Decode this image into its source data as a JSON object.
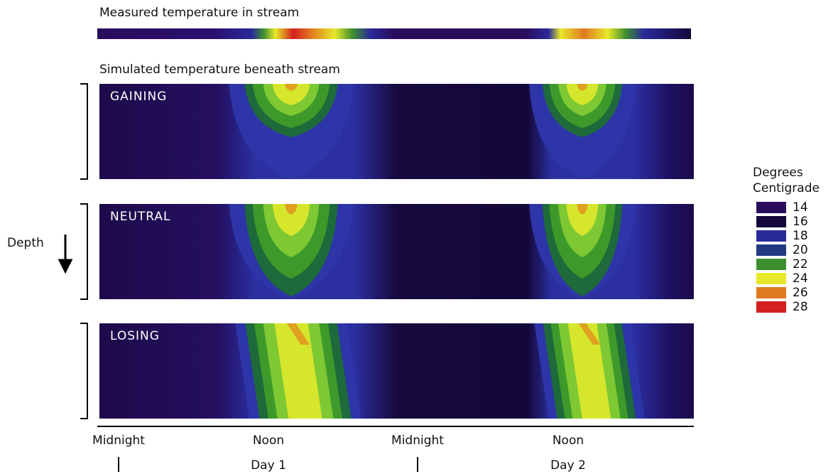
{
  "title_measured": "Measured temperature in stream",
  "title_simulated": "Simulated temperature beneath stream",
  "panels": [
    {
      "label": "GAINING"
    },
    {
      "label": "NEUTRAL"
    },
    {
      "label": "LOSING"
    }
  ],
  "depth_label": "Depth",
  "x_axis": {
    "labels": [
      {
        "time": "Midnight"
      },
      {
        "time": "Noon",
        "day": "Day 1"
      },
      {
        "time": "Midnight"
      },
      {
        "time": "Noon",
        "day": "Day 2"
      }
    ]
  },
  "legend": {
    "title": [
      "Degrees",
      "Centigrade"
    ],
    "items": [
      {
        "label": "14",
        "color": "#2a0c5c"
      },
      {
        "label": "16",
        "color": "#14083a"
      },
      {
        "label": "18",
        "color": "#2a2a9a"
      },
      {
        "label": "20",
        "color": "#1f3a80"
      },
      {
        "label": "22",
        "color": "#3d8f2e"
      },
      {
        "label": "24",
        "color": "#e8e82a"
      },
      {
        "label": "26",
        "color": "#e07a20"
      },
      {
        "label": "28",
        "color": "#d42020"
      }
    ]
  }
}
